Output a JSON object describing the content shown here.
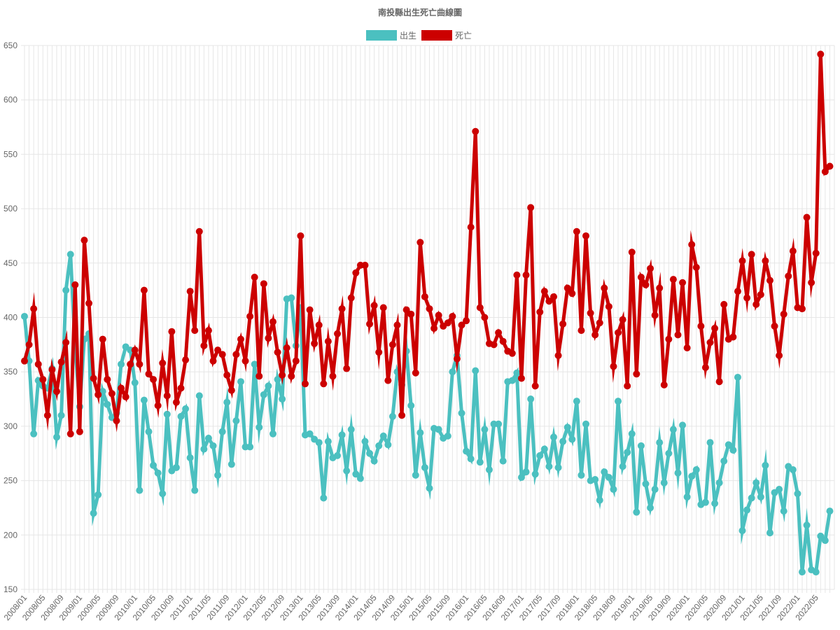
{
  "chart_data": {
    "type": "line",
    "title": "南投縣出生死亡曲線圖",
    "ylim": [
      150,
      650
    ],
    "y_ticks": [
      150,
      200,
      250,
      300,
      350,
      400,
      450,
      500,
      550,
      600,
      650
    ],
    "grid": true,
    "legend_position": "top-center",
    "x": [
      "2008/01",
      "2008/02",
      "2008/03",
      "2008/04",
      "2008/05",
      "2008/06",
      "2008/07",
      "2008/08",
      "2008/09",
      "2008/10",
      "2008/11",
      "2008/12",
      "2009/01",
      "2009/02",
      "2009/03",
      "2009/04",
      "2009/05",
      "2009/06",
      "2009/07",
      "2009/08",
      "2009/09",
      "2009/10",
      "2009/11",
      "2009/12",
      "2010/01",
      "2010/02",
      "2010/03",
      "2010/04",
      "2010/05",
      "2010/06",
      "2010/07",
      "2010/08",
      "2010/09",
      "2010/10",
      "2010/11",
      "2010/12",
      "2011/01",
      "2011/02",
      "2011/03",
      "2011/04",
      "2011/05",
      "2011/06",
      "2011/07",
      "2011/08",
      "2011/09",
      "2011/10",
      "2011/11",
      "2011/12",
      "2012/01",
      "2012/02",
      "2012/03",
      "2012/04",
      "2012/05",
      "2012/06",
      "2012/07",
      "2012/08",
      "2012/09",
      "2012/10",
      "2012/11",
      "2012/12",
      "2013/01",
      "2013/02",
      "2013/03",
      "2013/04",
      "2013/05",
      "2013/06",
      "2013/07",
      "2013/08",
      "2013/09",
      "2013/10",
      "2013/11",
      "2013/12",
      "2014/01",
      "2014/02",
      "2014/03",
      "2014/04",
      "2014/05",
      "2014/06",
      "2014/07",
      "2014/08",
      "2014/09",
      "2014/10",
      "2014/11",
      "2014/12",
      "2015/01",
      "2015/02",
      "2015/03",
      "2015/04",
      "2015/05",
      "2015/06",
      "2015/07",
      "2015/08",
      "2015/09",
      "2015/10",
      "2015/11",
      "2015/12",
      "2016/01",
      "2016/02",
      "2016/03",
      "2016/04",
      "2016/05",
      "2016/06",
      "2016/07",
      "2016/08",
      "2016/09",
      "2016/10",
      "2016/11",
      "2016/12",
      "2017/01",
      "2017/02",
      "2017/03",
      "2017/04",
      "2017/05",
      "2017/06",
      "2017/07",
      "2017/08",
      "2017/09",
      "2017/10",
      "2017/11",
      "2017/12",
      "2018/01",
      "2018/02",
      "2018/03",
      "2018/04",
      "2018/05",
      "2018/06",
      "2018/07",
      "2018/08",
      "2018/09",
      "2018/10",
      "2018/11",
      "2018/12",
      "2019/01",
      "2019/02",
      "2019/03",
      "2019/04",
      "2019/05",
      "2019/06",
      "2019/07",
      "2019/08",
      "2019/09",
      "2019/10",
      "2019/11",
      "2019/12",
      "2020/01",
      "2020/02",
      "2020/03",
      "2020/04",
      "2020/05",
      "2020/06",
      "2020/07",
      "2020/08",
      "2020/09",
      "2020/10",
      "2020/11",
      "2020/12",
      "2021/01",
      "2021/02",
      "2021/03",
      "2021/04",
      "2021/05",
      "2021/06",
      "2021/07",
      "2021/08",
      "2021/09",
      "2021/10",
      "2021/11",
      "2021/12",
      "2022/01",
      "2022/02",
      "2022/03",
      "2022/04",
      "2022/05",
      "2022/06",
      "2022/07",
      "2022/08"
    ],
    "x_tick_labels": [
      "2008/01",
      "2008/05",
      "2008/09",
      "2009/01",
      "2009/05",
      "2009/09",
      "2010/01",
      "2010/05",
      "2010/09",
      "2011/01",
      "2011/05",
      "2011/09",
      "2012/01",
      "2012/05",
      "2012/09",
      "2013/01",
      "2013/05",
      "2013/09",
      "2014/01",
      "2014/05",
      "2014/09",
      "2015/01",
      "2015/05",
      "2015/09",
      "2016/01",
      "2016/05",
      "2016/09",
      "2017/01",
      "2017/05",
      "2017/09",
      "2018/01",
      "2018/05",
      "2018/09",
      "2019/01",
      "2019/05",
      "2019/09",
      "2020/01",
      "2020/05",
      "2020/09",
      "2021/01",
      "2021/05",
      "2021/09",
      "2022/01",
      "2022/05"
    ],
    "series": [
      {
        "name": "出生",
        "color": "#4bc0c0",
        "values": [
          401,
          360,
          293,
          342,
          337,
          335,
          353,
          290,
          310,
          425,
          458,
          373,
          318,
          380,
          385,
          220,
          237,
          332,
          320,
          308,
          312,
          357,
          373,
          370,
          340,
          241,
          324,
          295,
          264,
          257,
          238,
          311,
          259,
          262,
          309,
          316,
          271,
          241,
          328,
          279,
          289,
          282,
          255,
          295,
          322,
          265,
          305,
          341,
          281,
          281,
          357,
          299,
          329,
          337,
          293,
          343,
          325,
          417,
          418,
          374,
          409,
          292,
          293,
          288,
          285,
          234,
          286,
          271,
          273,
          292,
          259,
          297,
          256,
          252,
          286,
          275,
          268,
          282,
          291,
          283,
          309,
          350,
          338,
          369,
          319,
          255,
          294,
          262,
          243,
          298,
          297,
          289,
          291,
          350,
          365,
          312,
          277,
          270,
          351,
          267,
          297,
          260,
          302,
          302,
          268,
          341,
          342,
          349,
          253,
          258,
          325,
          256,
          273,
          279,
          263,
          290,
          262,
          286,
          299,
          288,
          323,
          255,
          302,
          250,
          251,
          232,
          258,
          253,
          242,
          323,
          263,
          276,
          293,
          221,
          282,
          247,
          225,
          242,
          285,
          248,
          275,
          297,
          257,
          301,
          235,
          254,
          260,
          228,
          230,
          285,
          229,
          248,
          268,
          283,
          278,
          345,
          204,
          223,
          234,
          248,
          235,
          264,
          202,
          239,
          242,
          222,
          263,
          260,
          238,
          166,
          209,
          168,
          166,
          199,
          195,
          222
        ]
      },
      {
        "name": "死亡",
        "color": "#cc0000",
        "values": [
          360,
          375,
          408,
          357,
          343,
          310,
          352,
          332,
          359,
          377,
          293,
          430,
          295,
          471,
          413,
          344,
          329,
          380,
          343,
          330,
          305,
          335,
          327,
          357,
          370,
          357,
          425,
          348,
          343,
          319,
          358,
          328,
          387,
          322,
          335,
          361,
          424,
          388,
          479,
          374,
          388,
          360,
          370,
          366,
          347,
          333,
          366,
          380,
          360,
          401,
          437,
          346,
          431,
          381,
          396,
          368,
          347,
          372,
          346,
          360,
          475,
          339,
          407,
          376,
          393,
          339,
          378,
          346,
          385,
          408,
          353,
          418,
          441,
          448,
          448,
          394,
          411,
          368,
          409,
          342,
          375,
          393,
          310,
          407,
          403,
          349,
          469,
          419,
          408,
          390,
          402,
          392,
          395,
          401,
          362,
          393,
          397,
          483,
          571,
          409,
          400,
          376,
          375,
          386,
          378,
          369,
          367,
          439,
          344,
          439,
          501,
          337,
          405,
          424,
          415,
          419,
          365,
          394,
          427,
          422,
          479,
          388,
          475,
          404,
          384,
          395,
          427,
          410,
          355,
          386,
          398,
          337,
          460,
          348,
          437,
          430,
          445,
          402,
          427,
          338,
          380,
          435,
          384,
          432,
          372,
          467,
          446,
          392,
          354,
          377,
          390,
          341,
          412,
          380,
          382,
          424,
          452,
          418,
          458,
          412,
          421,
          452,
          434,
          392,
          365,
          403,
          438,
          461,
          409,
          408,
          492,
          432,
          459,
          642,
          534,
          539
        ]
      }
    ]
  }
}
